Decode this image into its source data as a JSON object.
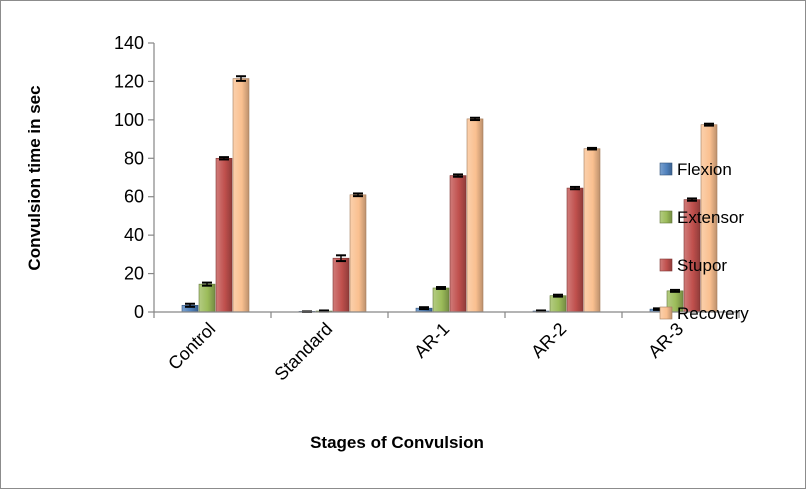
{
  "chart_data": {
    "type": "bar",
    "title": "",
    "xlabel": "Stages of Convulsion",
    "ylabel": "Convulsion time in sec",
    "ylim": [
      0,
      140
    ],
    "yticks": [
      0,
      20,
      40,
      60,
      80,
      100,
      120,
      140
    ],
    "categories": [
      "Control",
      "Standard",
      "AR-1",
      "AR-2",
      "AR-3"
    ],
    "series": [
      {
        "name": "Flexion",
        "color": "#4f81bd",
        "values": [
          3.5,
          0,
          2,
          0.5,
          1.5
        ],
        "errors": [
          0.8,
          0.3,
          0.5,
          0.3,
          0.4
        ]
      },
      {
        "name": "Extensor",
        "color": "#9bbb59",
        "values": [
          14.5,
          0.5,
          12.5,
          8.5,
          11
        ],
        "errors": [
          0.8,
          0.3,
          0.5,
          0.5,
          0.5
        ]
      },
      {
        "name": "Stupor",
        "color": "#c0504d",
        "values": [
          80,
          28,
          71,
          64.5,
          58.5
        ],
        "errors": [
          0.6,
          1.5,
          0.6,
          0.6,
          0.6
        ]
      },
      {
        "name": "Recovery",
        "color": "#fac090",
        "values": [
          121.5,
          61,
          100.5,
          85,
          97.5
        ],
        "errors": [
          1.2,
          0.7,
          0.6,
          0.4,
          0.5
        ]
      }
    ],
    "grid": false,
    "legend_position": "right"
  }
}
